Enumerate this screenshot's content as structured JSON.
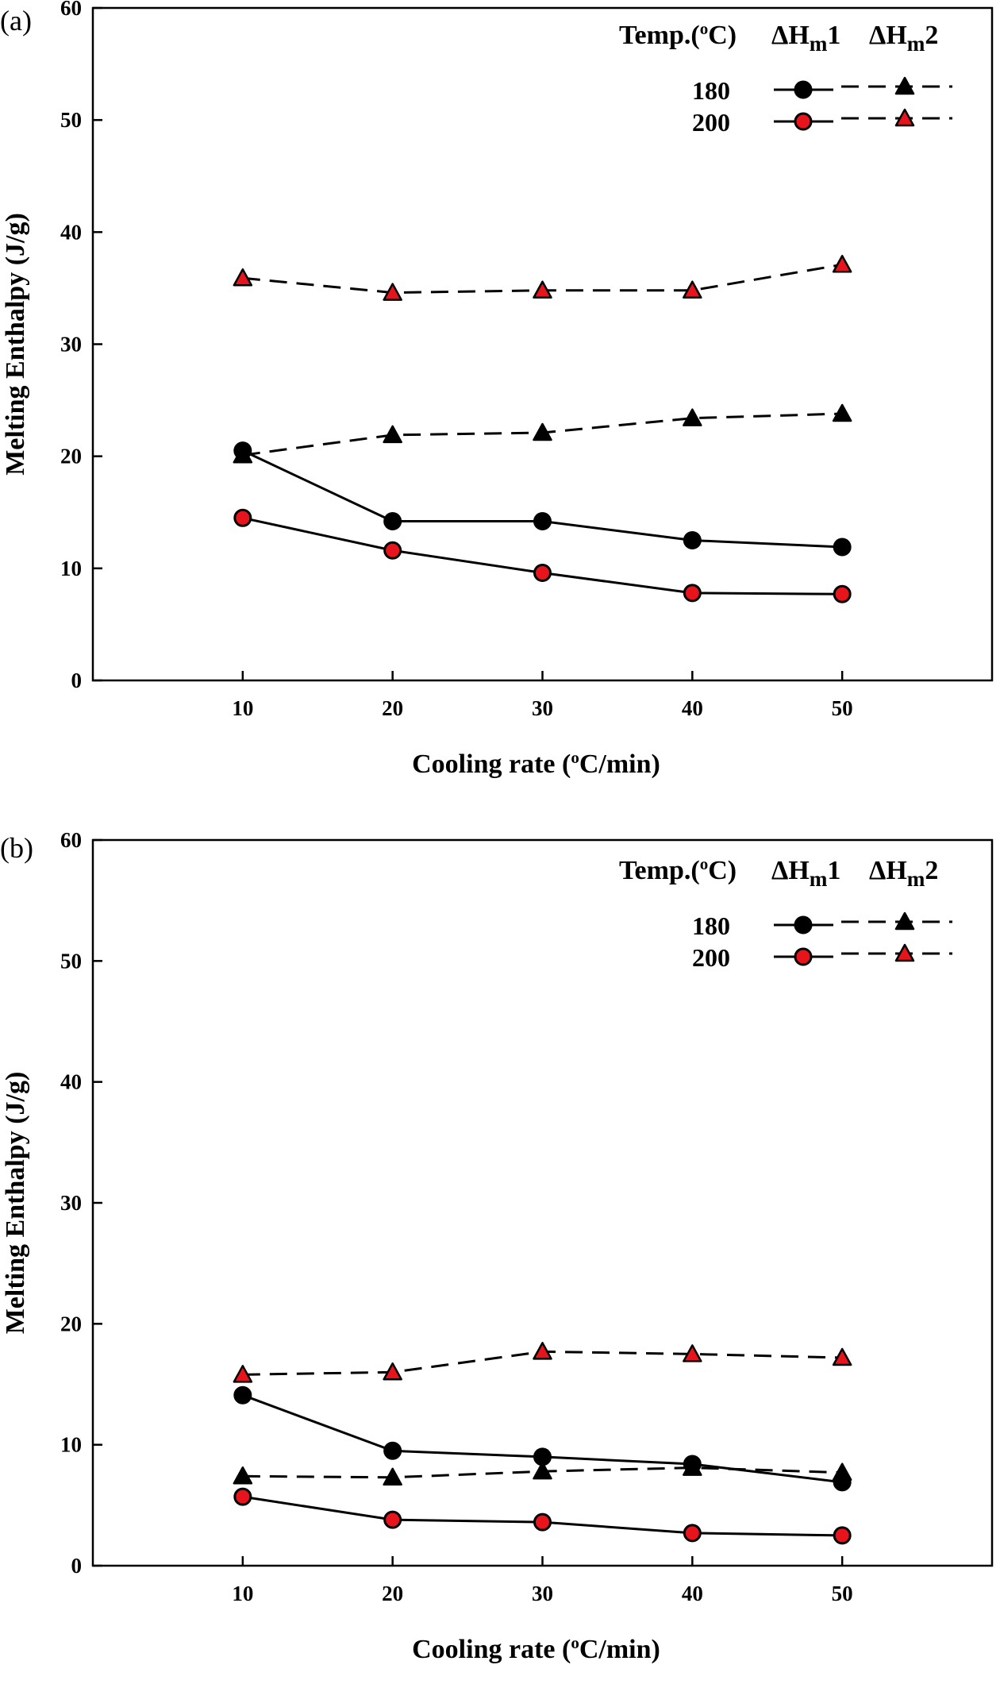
{
  "chart_data": [
    {
      "type": "line",
      "panel_label": "(a)",
      "xlabel": "Cooling rate (°C/min)",
      "ylabel": "Melting Enthalpy (J/g)",
      "xlim": [
        0,
        60
      ],
      "ylim": [
        0,
        60
      ],
      "xticks": [
        10,
        20,
        30,
        40,
        50
      ],
      "yticks": [
        0,
        10,
        20,
        30,
        40,
        50,
        60
      ],
      "x": [
        10,
        20,
        30,
        40,
        50
      ],
      "legend": {
        "position": "top-right",
        "header_temp": "Temp.(°C)",
        "header_col1": "ΔHm1",
        "header_col2": "ΔHm2",
        "rows": [
          "180",
          "200"
        ]
      },
      "series": [
        {
          "temp": "180",
          "measure": "ΔHm1",
          "marker": "circle",
          "fill": "#000000",
          "dash": false,
          "values": [
            20.5,
            14.2,
            14.2,
            12.5,
            11.9
          ]
        },
        {
          "temp": "200",
          "measure": "ΔHm1",
          "marker": "circle",
          "fill": "#e8141c",
          "dash": false,
          "values": [
            14.5,
            11.6,
            9.6,
            7.8,
            7.7
          ]
        },
        {
          "temp": "180",
          "measure": "ΔHm2",
          "marker": "triangle",
          "fill": "#000000",
          "dash": true,
          "values": [
            20.1,
            21.9,
            22.1,
            23.4,
            23.8
          ]
        },
        {
          "temp": "200",
          "measure": "ΔHm2",
          "marker": "triangle",
          "fill": "#e8141c",
          "dash": true,
          "values": [
            35.9,
            34.6,
            34.8,
            34.8,
            37.1
          ]
        }
      ]
    },
    {
      "type": "line",
      "panel_label": "(b)",
      "xlabel": "Cooling rate (°C/min)",
      "ylabel": "Melting Enthalpy (J/g)",
      "xlim": [
        0,
        60
      ],
      "ylim": [
        0,
        60
      ],
      "xticks": [
        10,
        20,
        30,
        40,
        50
      ],
      "yticks": [
        0,
        10,
        20,
        30,
        40,
        50,
        60
      ],
      "x": [
        10,
        20,
        30,
        40,
        50
      ],
      "legend": {
        "position": "top-right",
        "header_temp": "Temp.(°C)",
        "header_col1": "ΔHm1",
        "header_col2": "ΔHm2",
        "rows": [
          "180",
          "200"
        ]
      },
      "series": [
        {
          "temp": "180",
          "measure": "ΔHm1",
          "marker": "circle",
          "fill": "#000000",
          "dash": false,
          "values": [
            14.1,
            9.5,
            9.0,
            8.4,
            6.9
          ]
        },
        {
          "temp": "200",
          "measure": "ΔHm1",
          "marker": "circle",
          "fill": "#e8141c",
          "dash": false,
          "values": [
            5.7,
            3.8,
            3.6,
            2.7,
            2.5
          ]
        },
        {
          "temp": "180",
          "measure": "ΔHm2",
          "marker": "triangle",
          "fill": "#000000",
          "dash": true,
          "values": [
            7.4,
            7.3,
            7.8,
            8.1,
            7.7
          ]
        },
        {
          "temp": "200",
          "measure": "ΔHm2",
          "marker": "triangle",
          "fill": "#e8141c",
          "dash": true,
          "values": [
            15.8,
            16.0,
            17.7,
            17.5,
            17.2
          ]
        }
      ]
    }
  ]
}
